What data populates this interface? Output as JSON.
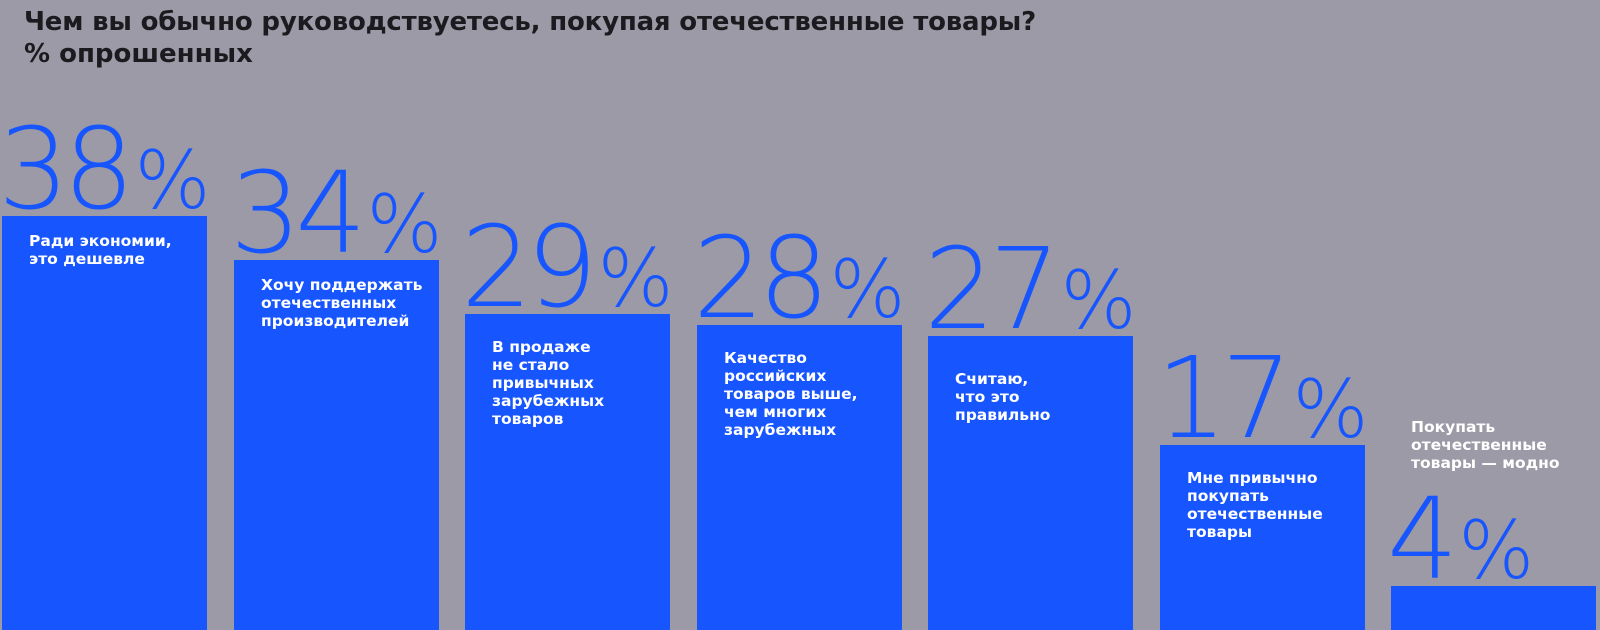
{
  "header": {
    "title": "Чем вы обычно руководствуетесь, покупая отечественные товары?",
    "subtitle": "% опрошенных"
  },
  "chart_data": {
    "type": "bar",
    "title": "Чем вы обычно руководствуетесь, покупая отечественные товары?",
    "subtitle": "% опрошенных",
    "categories": [
      "Ради экономии,\nэто дешевле",
      "Хочу поддержать\nотечественных\nпроизводителей",
      "В продаже\nне стало\nпривычных\nзарубежных\nтоваров",
      "Качество\nроссийских\nтоваров выше,\nчем многих\nзарубежных",
      "Считаю,\nчто это\nправильно",
      "Мне привычно\nпокупать\nотечественные\nтовары",
      "Покупать\nотечественные\nтовары — модно"
    ],
    "values": [
      38,
      34,
      29,
      28,
      27,
      17,
      4
    ],
    "value_suffix": "%",
    "ylim": [
      0,
      38
    ],
    "xlabel": "",
    "ylabel": "",
    "grid": false,
    "colors": {
      "bar": "#1755ff",
      "background": "#9b9aa6",
      "title": "#1a1a1f",
      "label": "#ffffff"
    }
  }
}
